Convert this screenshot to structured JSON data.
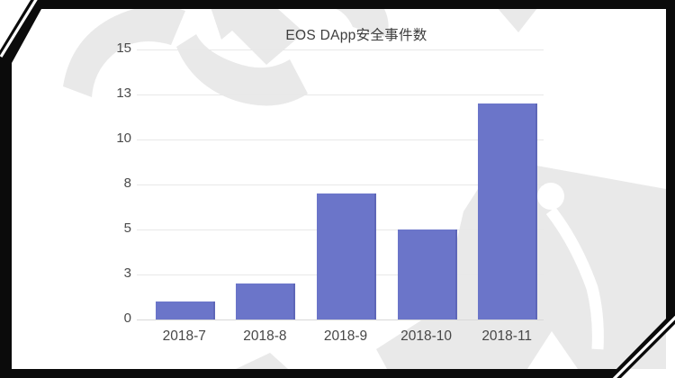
{
  "chart_data": {
    "type": "bar",
    "title": "EOS DApp安全事件数",
    "categories": [
      "2018-7",
      "2018-8",
      "2018-9",
      "2018-10",
      "2018-11"
    ],
    "values": [
      1,
      2,
      7,
      5,
      12
    ],
    "xlabel": "",
    "ylabel": "",
    "ylim": [
      0,
      15
    ],
    "ytick_values": [
      0,
      2.5,
      5,
      7.5,
      10,
      12.5,
      15
    ],
    "ytick_labels": [
      "0",
      "3",
      "5",
      "8",
      "10",
      "13",
      "15"
    ],
    "grid": true,
    "legend": "none",
    "bar_color": "#6b75c9"
  },
  "decor": {
    "frame_color": "#0b0b0b",
    "watermark_color": "#e9e9e9"
  }
}
